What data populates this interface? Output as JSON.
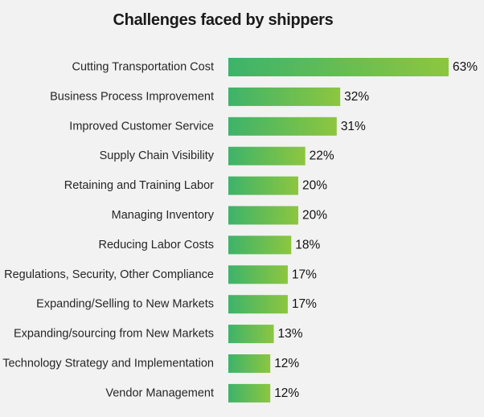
{
  "chart_data": {
    "type": "bar",
    "orientation": "horizontal",
    "title": "Challenges faced by shippers",
    "xlabel": "",
    "ylabel": "",
    "value_suffix": "%",
    "xlim": [
      0,
      63
    ],
    "grid": false,
    "legend": "none",
    "colors": {
      "bar_start": "#3db36a",
      "bar_end": "#8dc63f",
      "background": "#f2f2f2"
    },
    "categories": [
      "Cutting Transportation Cost",
      "Business Process Improvement",
      "Improved Customer Service",
      "Supply Chain Visibility",
      "Retaining and Training Labor",
      "Managing Inventory",
      "Reducing Labor Costs",
      "Regulations, Security, Other Compliance",
      "Expanding/Selling to New Markets",
      "Expanding/sourcing from New Markets",
      "Technology Strategy and Implementation",
      "Vendor Management"
    ],
    "values": [
      63,
      32,
      31,
      22,
      20,
      20,
      18,
      17,
      17,
      13,
      12,
      12
    ],
    "value_labels": [
      "63%",
      "32%",
      "31%",
      "22%",
      "20%",
      "20%",
      "18%",
      "17%",
      "17%",
      "13%",
      "12%",
      "12%"
    ]
  }
}
